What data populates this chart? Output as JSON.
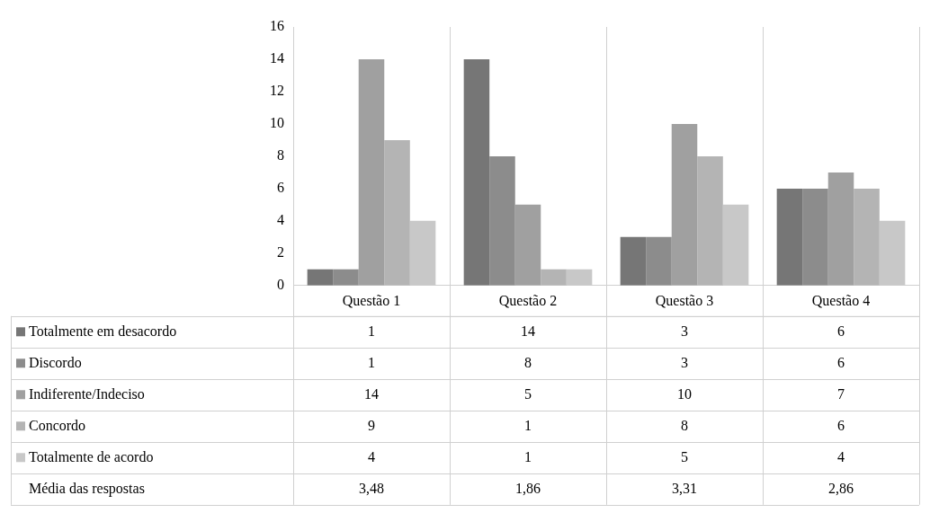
{
  "chart_data": {
    "type": "bar",
    "categories": [
      "Questão 1",
      "Questão 2",
      "Questão 3",
      "Questão 4"
    ],
    "series": [
      {
        "name": "Totalmente em desacordo",
        "color": "#767676",
        "values": [
          1,
          14,
          3,
          6
        ]
      },
      {
        "name": "Discordo",
        "color": "#8c8c8c",
        "values": [
          1,
          8,
          3,
          6
        ]
      },
      {
        "name": "Indiferente/Indeciso",
        "color": "#a0a0a0",
        "values": [
          14,
          5,
          10,
          7
        ]
      },
      {
        "name": "Concordo",
        "color": "#b4b4b4",
        "values": [
          9,
          1,
          8,
          6
        ]
      },
      {
        "name": "Totalmente de acordo",
        "color": "#c8c8c8",
        "values": [
          4,
          1,
          5,
          4
        ]
      }
    ],
    "ylim": [
      0,
      16
    ],
    "yticks": [
      0,
      2,
      4,
      6,
      8,
      10,
      12,
      14,
      16
    ],
    "grid": "x",
    "legend": "bottom left",
    "data_labels": true,
    "annotations": [
      "Média das respostas",
      "3,48",
      "1,86",
      "3,31",
      "2,86"
    ]
  }
}
